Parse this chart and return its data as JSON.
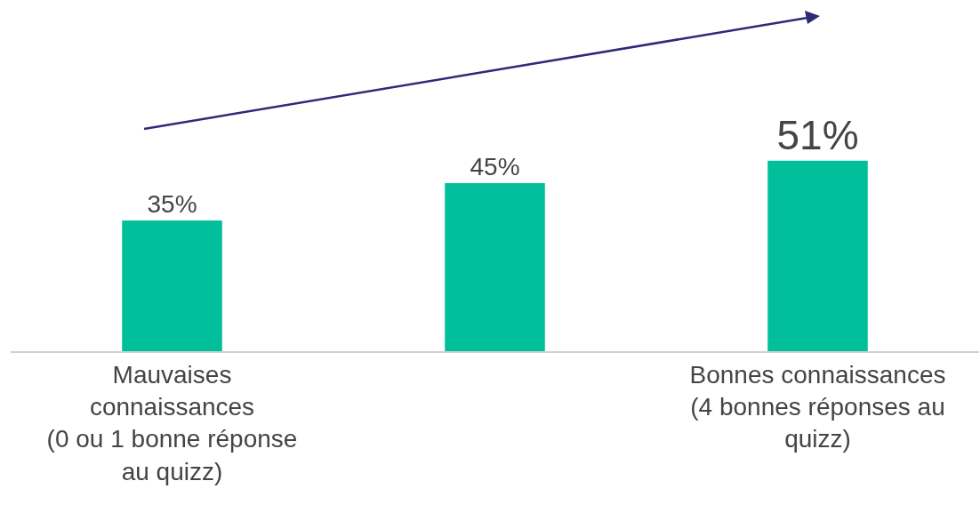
{
  "chart_data": {
    "type": "bar",
    "categories": [
      "Mauvaises\nconnaissances\n(0 ou 1 bonne réponse\nau quizz)",
      null,
      "Bonnes connaissances\n(4 bonnes réponses au\nquizz)"
    ],
    "values": [
      35,
      45,
      51
    ],
    "value_labels": [
      "35%",
      "45%",
      "51%"
    ],
    "color": "#00bf9a",
    "ylim": [
      0,
      94
    ],
    "legend": false
  }
}
